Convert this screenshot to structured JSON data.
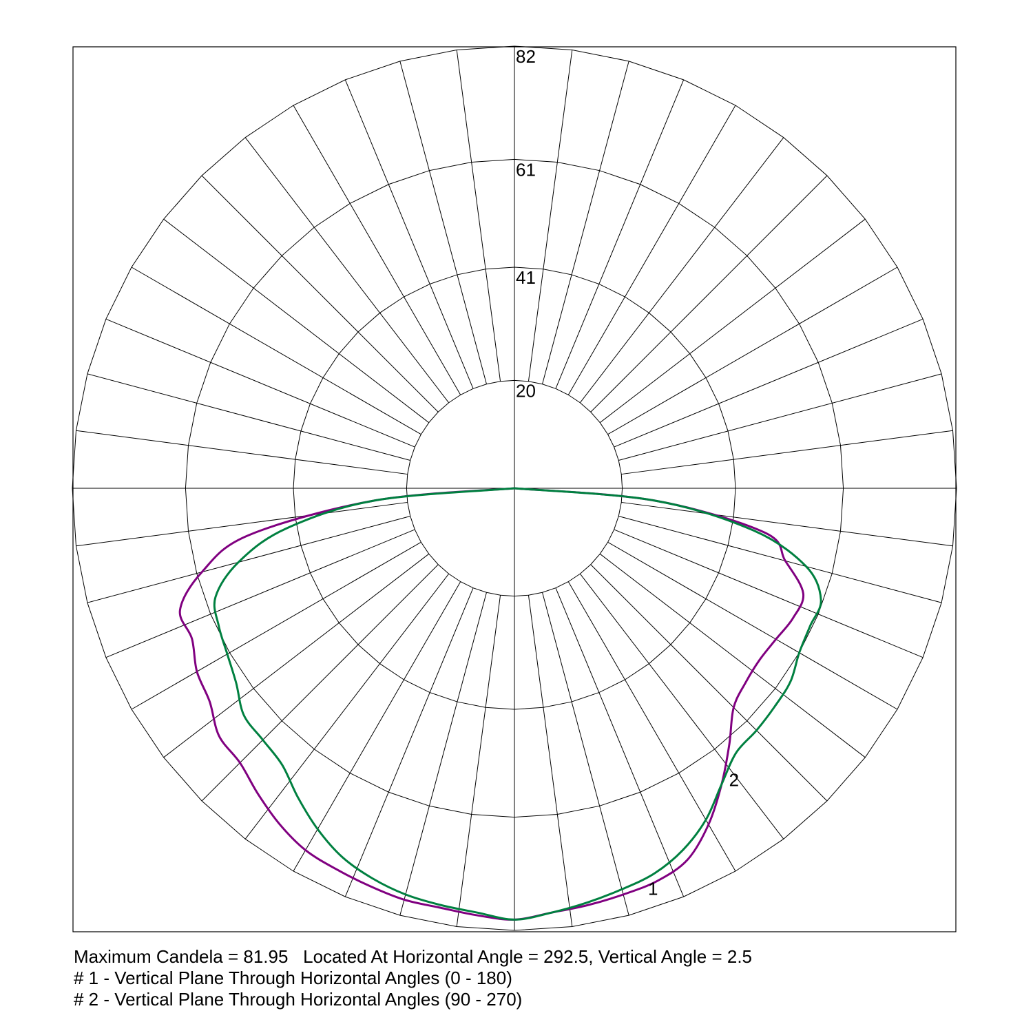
{
  "chart_data": {
    "type": "polar-photometric",
    "rmax": 82,
    "ring_values": [
      20,
      41,
      61,
      82
    ],
    "ring_labels": [
      "20",
      "41",
      "61",
      "82"
    ],
    "spoke_step_deg": 7.5,
    "colors": {
      "frame": "#000000",
      "grid": "#000000",
      "series1": "#800080",
      "series2": "#008040"
    },
    "series": [
      {
        "name": "1",
        "color": "#800080",
        "label_at_deg": 18,
        "right": [
          [
            0,
            80
          ],
          [
            5,
            79
          ],
          [
            10,
            78.5
          ],
          [
            15,
            78
          ],
          [
            20,
            77.5
          ],
          [
            25,
            76
          ],
          [
            30,
            72
          ],
          [
            35,
            67
          ],
          [
            40,
            62
          ],
          [
            45,
            57.5
          ],
          [
            50,
            56
          ],
          [
            55,
            55.5
          ],
          [
            60,
            56
          ],
          [
            65,
            57
          ],
          [
            70,
            57
          ],
          [
            75,
            52
          ],
          [
            80,
            47
          ],
          [
            85,
            26
          ],
          [
            90,
            0
          ]
        ],
        "left": [
          [
            0,
            80
          ],
          [
            5,
            79.5
          ],
          [
            10,
            79
          ],
          [
            15,
            79
          ],
          [
            20,
            78.5
          ],
          [
            25,
            78
          ],
          [
            30,
            77.5
          ],
          [
            35,
            76
          ],
          [
            40,
            74
          ],
          [
            45,
            72
          ],
          [
            50,
            71.5
          ],
          [
            55,
            69
          ],
          [
            60,
            68
          ],
          [
            65,
            66
          ],
          [
            70,
            66
          ],
          [
            75,
            60
          ],
          [
            80,
            50
          ],
          [
            85,
            26
          ],
          [
            90,
            0
          ]
        ]
      },
      {
        "name": "2",
        "color": "#008040",
        "label_at_deg": 36,
        "right": [
          [
            0,
            80
          ],
          [
            5,
            79
          ],
          [
            10,
            78
          ],
          [
            15,
            77
          ],
          [
            20,
            76
          ],
          [
            25,
            74
          ],
          [
            30,
            71
          ],
          [
            35,
            67
          ],
          [
            40,
            64
          ],
          [
            45,
            63.5
          ],
          [
            50,
            63
          ],
          [
            55,
            62.5
          ],
          [
            60,
            61
          ],
          [
            65,
            60.5
          ],
          [
            70,
            60.5
          ],
          [
            75,
            56
          ],
          [
            80,
            45
          ],
          [
            85,
            26
          ],
          [
            90,
            0
          ]
        ],
        "left": [
          [
            0,
            80
          ],
          [
            5,
            79
          ],
          [
            10,
            78.5
          ],
          [
            15,
            78
          ],
          [
            20,
            77
          ],
          [
            25,
            75.5
          ],
          [
            30,
            73
          ],
          [
            35,
            70
          ],
          [
            40,
            67
          ],
          [
            45,
            66
          ],
          [
            50,
            65.5
          ],
          [
            55,
            63
          ],
          [
            60,
            61.5
          ],
          [
            65,
            60.5
          ],
          [
            70,
            59
          ],
          [
            75,
            53
          ],
          [
            80,
            43
          ],
          [
            85,
            26
          ],
          [
            90,
            0
          ]
        ]
      }
    ]
  },
  "caption": {
    "max_line": "Maximum Candela = 81.95   Located At Horizontal Angle = 292.5, Vertical Angle = 2.5",
    "line1": "# 1 - Vertical Plane Through Horizontal Angles (0 - 180)",
    "line2": "# 2 - Vertical Plane Through Horizontal Angles (90 - 270)"
  }
}
